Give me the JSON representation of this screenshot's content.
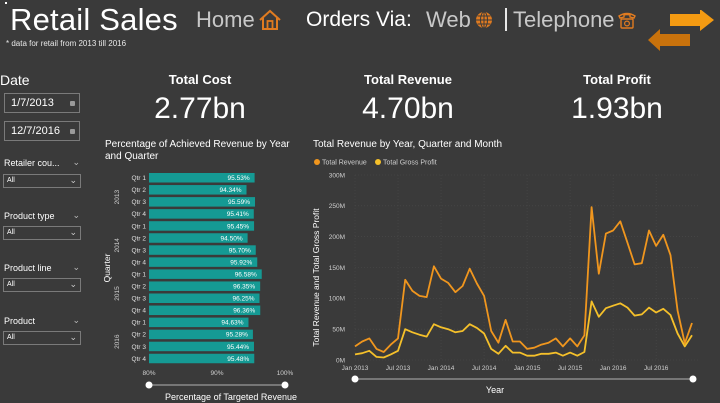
{
  "header": {
    "title": "Retail Sales",
    "subtitle": "* data for retail from 2013 till 2016",
    "nav_home": "Home",
    "orders_label": "Orders Via:",
    "nav_web": "Web",
    "nav_telephone": "Telephone",
    "accent_color": "#e07b20"
  },
  "filters": {
    "date_label": "Date",
    "date_start": "1/7/2013",
    "date_end": "12/7/2016",
    "slicers": [
      {
        "label": "Retailer cou...",
        "value": "All"
      },
      {
        "label": "Product type",
        "value": "All"
      },
      {
        "label": "Product line",
        "value": "All"
      },
      {
        "label": "Product",
        "value": "All"
      }
    ]
  },
  "kpis": [
    {
      "label": "Total Cost",
      "value": "2.77bn"
    },
    {
      "label": "Total Revenue",
      "value": "4.70bn"
    },
    {
      "label": "Total Profit",
      "value": "1.93bn"
    }
  ],
  "chart_data": [
    {
      "type": "bar",
      "orientation": "horizontal",
      "title": "Percentage of Achieved Revenue by Year and Quarter",
      "xlabel": "Percentage of Targeted Revenue",
      "ylabel": "Quarter",
      "xlim": [
        80,
        100
      ],
      "xticks": [
        "80%",
        "90%",
        "100%"
      ],
      "bar_color": "#159a94",
      "groups": [
        {
          "year": "2013",
          "quarters": [
            "Qtr 1",
            "Qtr 2",
            "Qtr 3",
            "Qtr 4"
          ],
          "values": [
            95.53,
            94.34,
            95.59,
            95.41
          ]
        },
        {
          "year": "2014",
          "quarters": [
            "Qtr 1",
            "Qtr 2",
            "Qtr 3",
            "Qtr 4"
          ],
          "values": [
            95.45,
            94.5,
            95.7,
            95.92
          ]
        },
        {
          "year": "2015",
          "quarters": [
            "Qtr 1",
            "Qtr 2",
            "Qtr 3",
            "Qtr 4"
          ],
          "values": [
            96.58,
            96.35,
            96.25,
            96.36
          ]
        },
        {
          "year": "2016",
          "quarters": [
            "Qtr 1",
            "Qtr 2",
            "Qtr 3",
            "Qtr 4"
          ],
          "values": [
            94.63,
            95.28,
            95.44,
            95.48
          ]
        }
      ],
      "value_labels": [
        "95.53%",
        "94.34%",
        "95.59%",
        "95.41%",
        "95.45%",
        "94.50%",
        "95.70%",
        "95.92%",
        "96.58%",
        "96.35%",
        "96.25%",
        "96.36%",
        "94.63%",
        "95.28%",
        "95.44%",
        "95.48%"
      ]
    },
    {
      "type": "line",
      "title": "Total Revenue by Year, Quarter and Month",
      "xlabel": "Year",
      "ylabel": "Total Revenue and Total Gross Profit",
      "ylim": [
        0,
        300
      ],
      "yunit": "M",
      "yticks": [
        "0M",
        "50M",
        "100M",
        "150M",
        "200M",
        "250M",
        "300M"
      ],
      "xticks": [
        "Jan 2013",
        "Jul 2013",
        "Jan 2014",
        "Jul 2014",
        "Jan 2015",
        "Jul 2015",
        "Jan 2016",
        "Jul 2016"
      ],
      "x_start": "Jan 2013",
      "x_months": 48,
      "grid": true,
      "legend_position": "top-left",
      "series": [
        {
          "name": "Total Revenue",
          "color": "#f0961e",
          "values": [
            22,
            30,
            35,
            18,
            13,
            25,
            35,
            130,
            112,
            104,
            102,
            152,
            132,
            125,
            110,
            120,
            148,
            124,
            104,
            47,
            28,
            65,
            30,
            30,
            18,
            20,
            25,
            28,
            35,
            22,
            35,
            22,
            40,
            248,
            140,
            205,
            210,
            225,
            190,
            155,
            157,
            210,
            185,
            203,
            170,
            80,
            27,
            60
          ]
        },
        {
          "name": "Total Gross Profit",
          "color": "#f5c02a",
          "values": [
            9,
            11,
            15,
            5,
            4,
            9,
            15,
            50,
            45,
            41,
            38,
            58,
            53,
            50,
            45,
            47,
            58,
            52,
            43,
            18,
            10,
            23,
            12,
            12,
            7,
            7,
            10,
            10,
            12,
            7,
            12,
            7,
            13,
            95,
            70,
            84,
            88,
            92,
            85,
            72,
            74,
            85,
            77,
            83,
            73,
            43,
            22,
            40
          ]
        }
      ]
    }
  ],
  "slider": {
    "start": 0,
    "end": 1
  }
}
